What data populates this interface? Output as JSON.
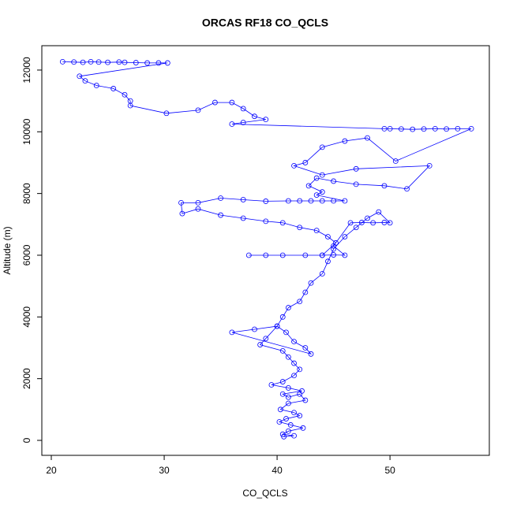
{
  "chart_data": {
    "type": "line",
    "title": "ORCAS RF18 CO_QCLS",
    "x_label": "CO_QCLS",
    "y_label": "Altitude (m)",
    "color": "#0000ff",
    "markers": true,
    "xlim": [
      19.16,
      58.8
    ],
    "ylim": [
      -485,
      12790
    ],
    "xticks": [
      20,
      30,
      40,
      50
    ],
    "yticks": [
      0,
      2000,
      4000,
      6000,
      8000,
      10000,
      12000
    ],
    "x": [
      21,
      22,
      22.8,
      23.5,
      24.2,
      25,
      26,
      26.5,
      27.5,
      28.5,
      29.5,
      30.3,
      22.5,
      23,
      24,
      25.5,
      26.5,
      27,
      27,
      30.2,
      33,
      34.5,
      36,
      37,
      38,
      39,
      37,
      36,
      49.5,
      50,
      51,
      52,
      53,
      54,
      55,
      56,
      57.2,
      50.5,
      48,
      46,
      44,
      42.5,
      41.5,
      44,
      47,
      53.5,
      51.5,
      49.5,
      47,
      45,
      43.5,
      42.8,
      44,
      43.5,
      46,
      45,
      44,
      43,
      42,
      41,
      39,
      37,
      35,
      33,
      31.5,
      31.6,
      33,
      35,
      37,
      39,
      40.5,
      42,
      43.5,
      44.5,
      45.2,
      44,
      37.5,
      39,
      40.5,
      42.5,
      44,
      45,
      46,
      45,
      46.5,
      47.5,
      48.5,
      49.5,
      50,
      49,
      48,
      47,
      46,
      45,
      44.5,
      44,
      43,
      42.5,
      42,
      41,
      40.5,
      40,
      40.8,
      41.5,
      42.5,
      43,
      36,
      38,
      40,
      39,
      38.5,
      40.5,
      41,
      41.5,
      42,
      41.5,
      40.5,
      39.5,
      41,
      42.2,
      40.5,
      41,
      42,
      42.5,
      41,
      40.3,
      41.5,
      42,
      40.8,
      40.2,
      41.2,
      42.3,
      41,
      40.5,
      41.5,
      40.6
    ],
    "y": [
      12270,
      12260,
      12250,
      12270,
      12260,
      12250,
      12260,
      12250,
      12240,
      12230,
      12230,
      12230,
      11800,
      11650,
      11500,
      11400,
      11200,
      11000,
      10850,
      10600,
      10700,
      10950,
      10950,
      10750,
      10500,
      10400,
      10300,
      10250,
      10100,
      10100,
      10090,
      10080,
      10090,
      10100,
      10090,
      10100,
      10100,
      9050,
      9800,
      9700,
      9500,
      9000,
      8900,
      8600,
      8800,
      8900,
      8150,
      8250,
      8300,
      8400,
      8500,
      8250,
      8050,
      7950,
      7760,
      7760,
      7760,
      7760,
      7760,
      7760,
      7750,
      7800,
      7850,
      7700,
      7700,
      7350,
      7500,
      7300,
      7200,
      7100,
      7050,
      6900,
      6800,
      6600,
      6400,
      6000,
      6000,
      6000,
      6000,
      6000,
      6000,
      6010,
      6000,
      6300,
      7050,
      7060,
      7050,
      7060,
      7050,
      7400,
      7200,
      6900,
      6600,
      6200,
      5800,
      5400,
      5100,
      4800,
      4500,
      4300,
      4000,
      3700,
      3500,
      3200,
      3000,
      2800,
      3500,
      3600,
      3700,
      3300,
      3100,
      2900,
      2700,
      2500,
      2300,
      2100,
      1900,
      1800,
      1700,
      1600,
      1500,
      1400,
      1500,
      1300,
      1200,
      1000,
      900,
      800,
      700,
      600,
      500,
      400,
      300,
      200,
      150,
      120
    ]
  }
}
